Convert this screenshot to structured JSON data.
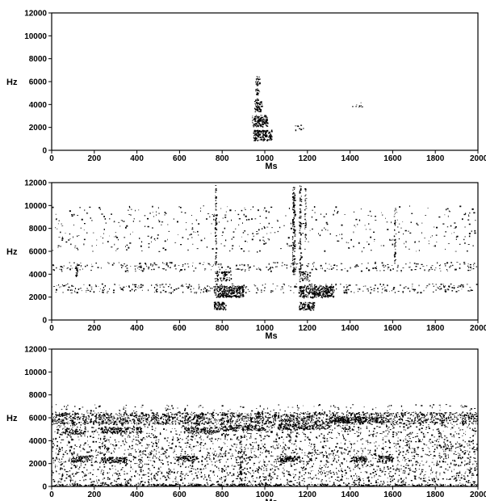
{
  "chart_data": [
    {
      "type": "heatmap",
      "title": "",
      "xlabel": "Ms",
      "ylabel": "Hz",
      "xlim": [
        0,
        2000
      ],
      "ylim": [
        0,
        12000
      ],
      "xticks": [
        "0",
        "200",
        "400",
        "600",
        "800",
        "1000",
        "1200",
        "1400",
        "1600",
        "1800",
        "2000"
      ],
      "yticks": [
        "0",
        "2000",
        "4000",
        "6000",
        "8000",
        "10000",
        "12000"
      ],
      "ink_color": "#000000",
      "regions": [
        {
          "x0": 950,
          "x1": 985,
          "y0": 3400,
          "y1": 4400,
          "density": 0.9
        },
        {
          "x0": 940,
          "x1": 1010,
          "y0": 2100,
          "y1": 3100,
          "density": 0.95
        },
        {
          "x0": 945,
          "x1": 1030,
          "y0": 900,
          "y1": 1800,
          "density": 0.95
        },
        {
          "x0": 955,
          "x1": 975,
          "y0": 4400,
          "y1": 6500,
          "density": 0.5
        },
        {
          "x0": 1140,
          "x1": 1180,
          "y0": 1800,
          "y1": 2300,
          "density": 0.3
        },
        {
          "x0": 1410,
          "x1": 1460,
          "y0": 3800,
          "y1": 4200,
          "density": 0.2
        }
      ]
    },
    {
      "type": "heatmap",
      "title": "",
      "xlabel": "Ms",
      "ylabel": "Hz",
      "xlim": [
        0,
        2000
      ],
      "ylim": [
        0,
        12000
      ],
      "xticks": [
        "0",
        "200",
        "400",
        "600",
        "800",
        "1000",
        "1200",
        "1400",
        "1600",
        "1800",
        "2000"
      ],
      "yticks": [
        "0",
        "2000",
        "4000",
        "6000",
        "8000",
        "10000",
        "12000"
      ],
      "ink_color": "#000000",
      "regions": [
        {
          "x0": 0,
          "x1": 2000,
          "y0": 2400,
          "y1": 3200,
          "density": 0.12
        },
        {
          "x0": 0,
          "x1": 2000,
          "y0": 4300,
          "y1": 5100,
          "density": 0.1
        },
        {
          "x0": 0,
          "x1": 2000,
          "y0": 6000,
          "y1": 10000,
          "density": 0.03
        },
        {
          "x0": 760,
          "x1": 900,
          "y0": 2000,
          "y1": 3000,
          "density": 0.95
        },
        {
          "x0": 760,
          "x1": 820,
          "y0": 900,
          "y1": 1600,
          "density": 0.9
        },
        {
          "x0": 765,
          "x1": 840,
          "y0": 3400,
          "y1": 4300,
          "density": 0.5
        },
        {
          "x0": 765,
          "x1": 772,
          "y0": 5000,
          "y1": 11800,
          "density": 0.6
        },
        {
          "x0": 1160,
          "x1": 1320,
          "y0": 2000,
          "y1": 3000,
          "density": 0.95
        },
        {
          "x0": 1160,
          "x1": 1230,
          "y0": 900,
          "y1": 1600,
          "density": 0.9
        },
        {
          "x0": 1160,
          "x1": 1210,
          "y0": 3400,
          "y1": 4300,
          "density": 0.5
        },
        {
          "x0": 1128,
          "x1": 1140,
          "y0": 4000,
          "y1": 11800,
          "density": 0.7
        },
        {
          "x0": 1160,
          "x1": 1170,
          "y0": 4000,
          "y1": 11800,
          "density": 0.5
        },
        {
          "x0": 1185,
          "x1": 1192,
          "y0": 6000,
          "y1": 11600,
          "density": 0.4
        },
        {
          "x0": 1605,
          "x1": 1612,
          "y0": 5000,
          "y1": 10000,
          "density": 0.5
        },
        {
          "x0": 110,
          "x1": 120,
          "y0": 3800,
          "y1": 5000,
          "density": 0.6
        }
      ]
    },
    {
      "type": "heatmap",
      "title": "",
      "xlabel": "Ms",
      "ylabel": "Hz",
      "xlim": [
        0,
        2000
      ],
      "ylim": [
        0,
        12000
      ],
      "xticks": [
        "0",
        "200",
        "400",
        "600",
        "800",
        "1000",
        "1200",
        "1400",
        "1600",
        "1800",
        "2000"
      ],
      "yticks": [
        "0",
        "2000",
        "4000",
        "6000",
        "8000",
        "10000",
        "12000"
      ],
      "ink_color": "#000000",
      "regions": [
        {
          "x0": 0,
          "x1": 2000,
          "y0": 5500,
          "y1": 6500,
          "density": 0.45
        },
        {
          "x0": 0,
          "x1": 2000,
          "y0": 3600,
          "y1": 5500,
          "density": 0.12
        },
        {
          "x0": 0,
          "x1": 2000,
          "y0": 0,
          "y1": 3600,
          "density": 0.14
        },
        {
          "x0": 0,
          "x1": 2000,
          "y0": 0,
          "y1": 250,
          "density": 0.6
        },
        {
          "x0": 0,
          "x1": 2000,
          "y0": 6500,
          "y1": 7200,
          "density": 0.05
        },
        {
          "x0": 90,
          "x1": 180,
          "y0": 2200,
          "y1": 2700,
          "density": 0.85
        },
        {
          "x0": 230,
          "x1": 350,
          "y0": 2100,
          "y1": 2600,
          "density": 0.85
        },
        {
          "x0": 580,
          "x1": 680,
          "y0": 2200,
          "y1": 2700,
          "density": 0.8
        },
        {
          "x0": 1060,
          "x1": 1160,
          "y0": 2200,
          "y1": 2700,
          "density": 0.85
        },
        {
          "x0": 1400,
          "x1": 1480,
          "y0": 2200,
          "y1": 2700,
          "density": 0.8
        },
        {
          "x0": 1530,
          "x1": 1600,
          "y0": 2200,
          "y1": 2700,
          "density": 0.75
        },
        {
          "x0": 60,
          "x1": 160,
          "y0": 4600,
          "y1": 5100,
          "density": 0.7
        },
        {
          "x0": 230,
          "x1": 420,
          "y0": 4700,
          "y1": 5200,
          "density": 0.7
        },
        {
          "x0": 620,
          "x1": 780,
          "y0": 4700,
          "y1": 5200,
          "density": 0.7
        },
        {
          "x0": 800,
          "x1": 1000,
          "y0": 4900,
          "y1": 5400,
          "density": 0.7
        },
        {
          "x0": 1060,
          "x1": 1300,
          "y0": 5000,
          "y1": 5500,
          "density": 0.7
        },
        {
          "x0": 1300,
          "x1": 1560,
          "y0": 5600,
          "y1": 6100,
          "density": 0.85
        },
        {
          "x0": 880,
          "x1": 890,
          "y0": 700,
          "y1": 4500,
          "density": 0.7
        }
      ]
    }
  ]
}
